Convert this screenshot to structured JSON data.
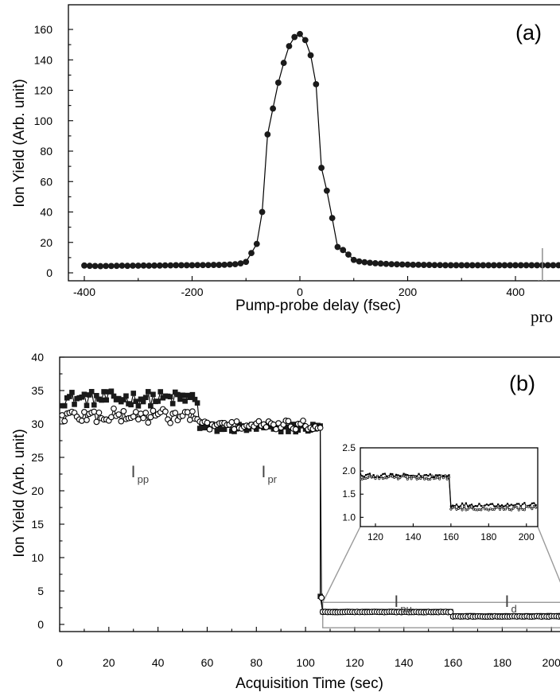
{
  "chart_data": [
    {
      "type": "line",
      "panel_label": "(a)",
      "xlabel": "Pump-probe delay (fsec)",
      "ylabel": "Ion Yield (Arb. unit)",
      "xlim": [
        -440,
        480
      ],
      "ylim": [
        -10,
        168
      ],
      "xticks": [
        -400,
        -200,
        0,
        200,
        400
      ],
      "yticks": [
        0,
        20,
        40,
        60,
        80,
        100,
        120,
        140,
        160
      ],
      "xtick_labels": [
        "-400",
        "-200",
        "0",
        "200",
        "400"
      ],
      "ytick_labels": [
        "0",
        "20",
        "40",
        "60",
        "80",
        "100",
        "120",
        "140",
        "160"
      ],
      "marker": "filled-circle",
      "arrow_x": 450,
      "series": [
        {
          "x": [
            -400,
            -390,
            -380,
            -370,
            -360,
            -350,
            -340,
            -330,
            -320,
            -310,
            -300,
            -290,
            -280,
            -270,
            -260,
            -250,
            -240,
            -230,
            -220,
            -210,
            -200,
            -190,
            -180,
            -170,
            -160,
            -150,
            -140,
            -130,
            -120,
            -110,
            -100,
            -90,
            -80,
            -70,
            -60,
            -50,
            -40,
            -30,
            -20,
            -10,
            0,
            10,
            20,
            30,
            40,
            50,
            60,
            70,
            80,
            90,
            100,
            110,
            120,
            130,
            140,
            150,
            160,
            170,
            180,
            190,
            200,
            210,
            220,
            230,
            240,
            250,
            260,
            270,
            280,
            290,
            300,
            310,
            320,
            330,
            340,
            350,
            360,
            370,
            380,
            390,
            400,
            410,
            420,
            430,
            440,
            450,
            460,
            470,
            480
          ],
          "y": [
            4.8,
            4.6,
            4.5,
            4.4,
            4.5,
            4.5,
            4.6,
            4.7,
            4.6,
            4.7,
            4.7,
            4.8,
            4.7,
            4.8,
            4.8,
            4.9,
            4.9,
            5.0,
            5.0,
            5.0,
            5.0,
            5.1,
            5.1,
            5.1,
            5.2,
            5.2,
            5.3,
            5.5,
            5.7,
            6.2,
            7.2,
            13,
            19,
            40,
            91,
            108,
            125,
            138,
            149,
            155,
            157,
            153,
            143,
            124,
            69,
            54,
            36,
            17,
            15,
            12,
            8.5,
            7.5,
            7,
            6.6,
            6.3,
            6.1,
            5.9,
            5.7,
            5.6,
            5.5,
            5.4,
            5.3,
            5.3,
            5.2,
            5.2,
            5.1,
            5.1,
            5.0,
            5.0,
            5.0,
            5.0,
            5.0,
            5.0,
            5.0,
            5.0,
            5.0,
            5.0,
            5.0,
            5.0,
            5.0,
            5.0,
            5.0,
            5.0,
            5.0,
            5.0,
            5.0,
            5.0,
            5.0,
            5.0
          ]
        }
      ]
    },
    {
      "type": "line",
      "panel_label": "(b)",
      "xlabel": "Acquisition Time (sec)",
      "ylabel": "Ion Yield (Arb. unit)",
      "xlim": [
        0,
        208
      ],
      "ylim": [
        -2,
        40
      ],
      "xticks": [
        0,
        20,
        40,
        60,
        80,
        100,
        120,
        140,
        160,
        180,
        200
      ],
      "yticks": [
        0,
        5,
        10,
        15,
        20,
        25,
        30,
        35,
        40
      ],
      "xtick_labels": [
        "0",
        "20",
        "40",
        "60",
        "80",
        "100",
        "120",
        "140",
        "160",
        "180",
        "200"
      ],
      "ytick_labels": [
        "0",
        "5",
        "10",
        "15",
        "20",
        "25",
        "30",
        "35",
        "40"
      ],
      "annotations": [
        {
          "text": "I",
          "sub": "pp",
          "x": 29,
          "y": 22
        },
        {
          "text": "I",
          "sub": "pr",
          "x": 82,
          "y": 22
        },
        {
          "text": "I",
          "sub": "pu",
          "x": 136,
          "y": 2.6
        },
        {
          "text": "I",
          "sub": "d",
          "x": 181,
          "y": 2.6
        }
      ],
      "series": [
        {
          "marker": "filled-square",
          "segments": [
            {
              "x_start": 1,
              "x_end": 56,
              "step": 1,
              "mean": 33.8,
              "noise": 0.8
            },
            {
              "x_start": 57,
              "x_end": 106,
              "step": 1,
              "mean": 29.4,
              "noise": 0.5
            },
            {
              "x_start": 107,
              "x_end": 159,
              "step": 1,
              "mean": 1.9,
              "noise": 0.03
            },
            {
              "x_start": 160,
              "x_end": 205,
              "step": 1,
              "mean": 1.27,
              "noise": 0.03
            }
          ]
        },
        {
          "marker": "open-circle",
          "segments": [
            {
              "x_start": 1,
              "x_end": 56,
              "step": 1,
              "mean": 31.2,
              "noise": 0.8
            },
            {
              "x_start": 57,
              "x_end": 106,
              "step": 1,
              "mean": 29.8,
              "noise": 0.5
            },
            {
              "x_start": 107,
              "x_end": 159,
              "step": 1,
              "mean": 1.86,
              "noise": 0.03
            },
            {
              "x_start": 160,
              "x_end": 205,
              "step": 1,
              "mean": 1.2,
              "noise": 0.03
            }
          ]
        }
      ],
      "inset": {
        "xlim": [
          112,
          206
        ],
        "ylim": [
          0.8,
          2.5
        ],
        "xticks": [
          120,
          140,
          160,
          180,
          200
        ],
        "yticks": [
          1.0,
          1.5,
          2.0,
          2.5
        ],
        "xtick_labels": [
          "120",
          "140",
          "160",
          "180",
          "200"
        ],
        "ytick_labels": [
          "1.0",
          "1.5",
          "2.0",
          "2.5"
        ],
        "zoom_box": {
          "x": [
            107,
            207
          ],
          "y": [
            -0.5,
            3.3
          ]
        }
      }
    }
  ],
  "cutoff_text": "pro"
}
